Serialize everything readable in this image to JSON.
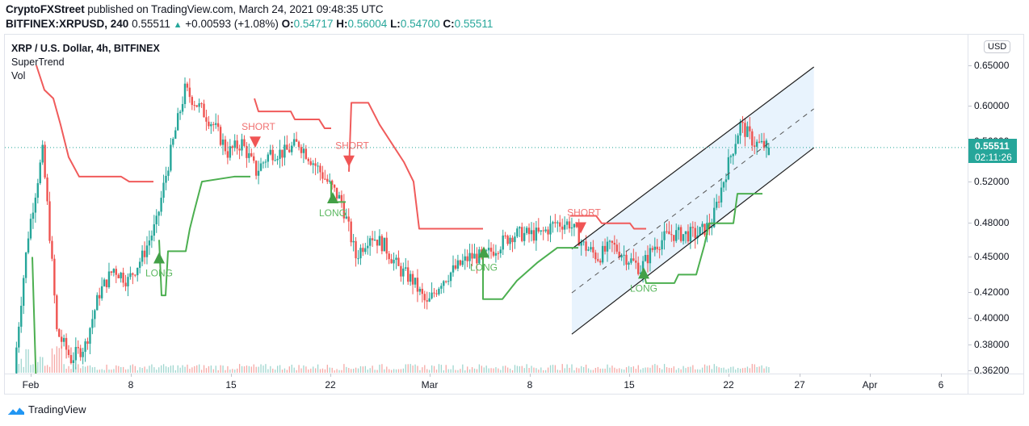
{
  "header": {
    "publisher": "CryptoFXStreet",
    "published_text": "published on TradingView.com, March 24, 2021 09:48:35 UTC",
    "symbol": "BITFINEX:XRPUSD, 240",
    "last_price": "0.55511",
    "change_arrow": "▲",
    "change": "+0.00593 (+1.08%)",
    "ohlc": {
      "o_label": "O:",
      "o": "0.54717",
      "h_label": "H:",
      "h": "0.56004",
      "l_label": "L:",
      "l": "0.54700",
      "c_label": "C:",
      "c": "0.55511"
    }
  },
  "legend": {
    "title": "XRP / U.S. Dollar, 4h, BITFINEX",
    "indicator1": "SuperTrend",
    "indicator2": "Vol"
  },
  "price_axis": {
    "currency_button": "USD",
    "current_price": "0.55511",
    "countdown": "02:11:26",
    "ticks": [
      "0.65000",
      "0.60000",
      "0.56000",
      "0.52000",
      "0.48000",
      "0.45000",
      "0.42000",
      "0.40000",
      "0.38000",
      "0.36200"
    ]
  },
  "time_axis": {
    "ticks": [
      "Feb",
      "8",
      "15",
      "22",
      "Mar",
      "8",
      "15",
      "22",
      "27",
      "Apr",
      "6"
    ]
  },
  "footer": {
    "brand": "TradingView"
  },
  "colors": {
    "up": "#26a69a",
    "down": "#ef5350",
    "supertrend_up": "#4caf50",
    "supertrend_down": "#f05b5b",
    "channel_fill": "#e8f3fd",
    "channel_line": "#1e1e1e",
    "grid": "#e0e3eb"
  },
  "chart_data": {
    "type": "candlestick",
    "title": "XRP / U.S. Dollar, 4h, BITFINEX",
    "symbol": "BITFINEX:XRPUSD",
    "interval": "240",
    "xlabel": "",
    "ylabel": "USD",
    "ylim": [
      0.355,
      0.66
    ],
    "y_scale": "log",
    "x_range": [
      "2021-01-31",
      "2021-04-08"
    ],
    "y_ticks": [
      0.65,
      0.6,
      0.56,
      0.52,
      0.48,
      0.45,
      0.42,
      0.4,
      0.38,
      0.362
    ],
    "x_ticks": [
      "Feb",
      "8",
      "15",
      "22",
      "Mar",
      "8",
      "15",
      "22",
      "27",
      "Apr",
      "6"
    ],
    "last": {
      "open": 0.54717,
      "high": 0.56004,
      "low": 0.547,
      "close": 0.55511,
      "change": 0.00593,
      "change_pct": 1.08
    },
    "daily_closes_approx": {
      "dates": [
        "Jan31",
        "Feb1",
        "Feb2",
        "Feb3",
        "Feb4",
        "Feb5",
        "Feb6",
        "Feb7",
        "Feb8",
        "Feb9",
        "Feb10",
        "Feb11",
        "Feb12",
        "Feb13",
        "Feb14",
        "Feb15",
        "Feb16",
        "Feb17",
        "Feb18",
        "Feb19",
        "Feb20",
        "Feb21",
        "Feb22",
        "Feb23",
        "Feb24",
        "Feb25",
        "Feb26",
        "Feb27",
        "Feb28",
        "Mar1",
        "Mar2",
        "Mar3",
        "Mar4",
        "Mar5",
        "Mar6",
        "Mar7",
        "Mar8",
        "Mar9",
        "Mar10",
        "Mar11",
        "Mar12",
        "Mar13",
        "Mar14",
        "Mar15",
        "Mar16",
        "Mar17",
        "Mar18",
        "Mar19",
        "Mar20",
        "Mar21",
        "Mar22",
        "Mar23",
        "Mar24"
      ],
      "close": [
        0.47,
        0.55,
        0.39,
        0.37,
        0.38,
        0.42,
        0.44,
        0.43,
        0.45,
        0.48,
        0.55,
        0.62,
        0.6,
        0.58,
        0.55,
        0.56,
        0.53,
        0.55,
        0.55,
        0.56,
        0.54,
        0.52,
        0.5,
        0.45,
        0.47,
        0.46,
        0.44,
        0.43,
        0.41,
        0.43,
        0.44,
        0.45,
        0.45,
        0.46,
        0.47,
        0.47,
        0.47,
        0.48,
        0.48,
        0.46,
        0.45,
        0.46,
        0.45,
        0.44,
        0.46,
        0.47,
        0.47,
        0.47,
        0.48,
        0.53,
        0.58,
        0.56,
        0.555
      ]
    },
    "indicators": {
      "supertrend_signals": [
        {
          "label": "LONG",
          "date": "Feb 10",
          "price": 0.465
        },
        {
          "label": "SHORT",
          "date": "Feb 17",
          "price": 0.56
        },
        {
          "label": "LONG",
          "date": "Feb 22",
          "price": 0.5
        },
        {
          "label": "SHORT",
          "date": "Feb 23",
          "price": 0.53
        },
        {
          "label": "LONG",
          "date": "Mar 5",
          "price": 0.455
        },
        {
          "label": "SHORT",
          "date": "Mar 11",
          "price": 0.465
        },
        {
          "label": "LONG",
          "date": "Mar 16",
          "price": 0.44
        }
      ]
    },
    "drawings": {
      "ascending_channel": {
        "upper": [
          [
            "Mar 11",
            0.457
          ],
          [
            "Mar 28",
            0.648
          ]
        ],
        "middle": [
          [
            "Mar 11",
            0.42
          ],
          [
            "Mar 28",
            0.598
          ]
        ],
        "lower": [
          [
            "Mar 11",
            0.388
          ],
          [
            "Mar 28",
            0.555
          ]
        ]
      }
    },
    "legend": [
      "SuperTrend",
      "Vol"
    ],
    "grid": false
  }
}
